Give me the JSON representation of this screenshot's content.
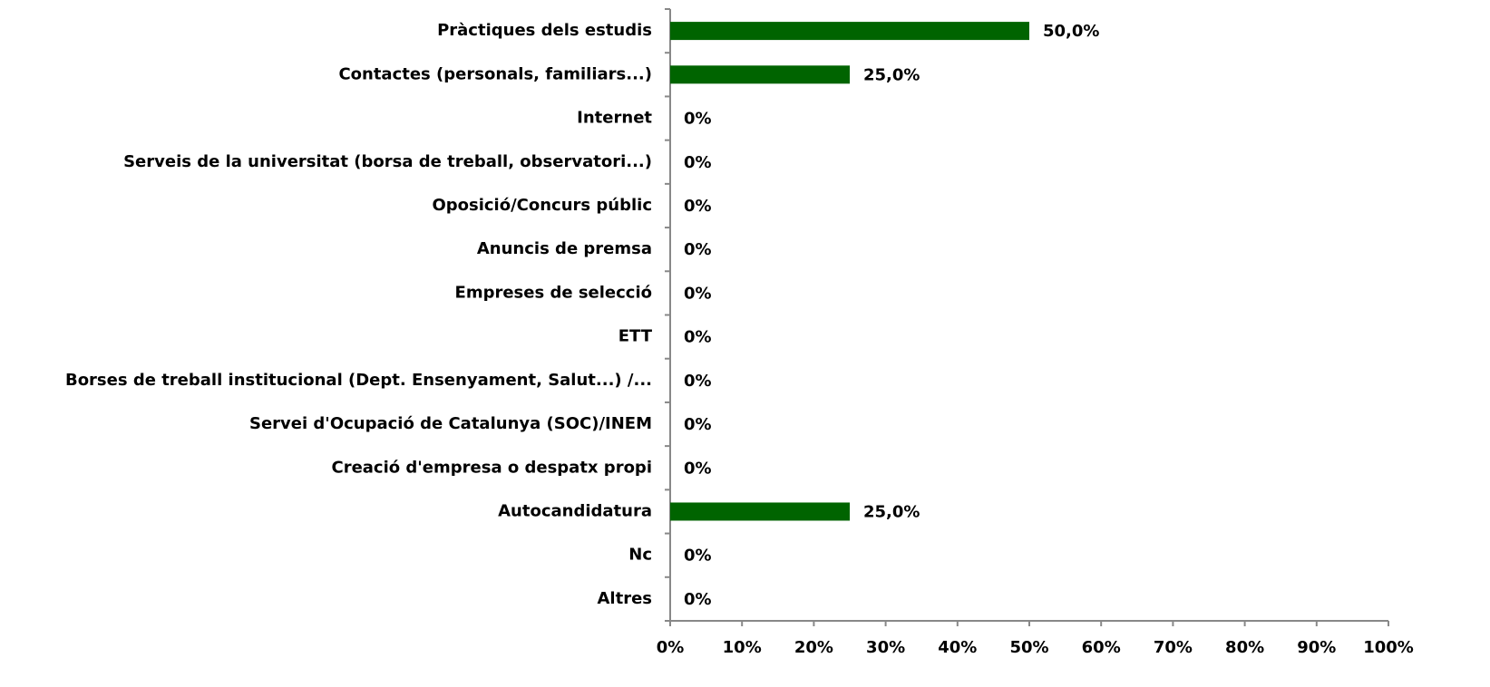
{
  "chart_data": {
    "type": "barh",
    "categories": [
      "Pràctiques dels estudis",
      "Contactes (personals, familiars...)",
      "Internet",
      "Serveis de la universitat (borsa de treball, observatori...)",
      "Oposició/Concurs públic",
      "Anuncis de premsa",
      "Empreses de selecció",
      "ETT",
      "Borses de treball institucional (Dept. Ensenyament, Salut...) /...",
      "Servei d'Ocupació de Catalunya (SOC)/INEM",
      "Creació d'empresa o despatx propi",
      "Autocandidatura",
      "Nc",
      "Altres"
    ],
    "values": [
      50,
      25,
      0,
      0,
      0,
      0,
      0,
      0,
      0,
      0,
      0,
      25,
      0,
      0
    ],
    "value_labels": [
      "50,0%",
      "25,0%",
      "0%",
      "0%",
      "0%",
      "0%",
      "0%",
      "0%",
      "0%",
      "0%",
      "0%",
      "25,0%",
      "0%",
      "0%"
    ],
    "color": "#006400",
    "xlim": [
      0,
      100
    ],
    "xticks": [
      {
        "value": 0,
        "label": "0%"
      },
      {
        "value": 10,
        "label": "10%"
      },
      {
        "value": 20,
        "label": "20%"
      },
      {
        "value": 30,
        "label": "30%"
      },
      {
        "value": 40,
        "label": "40%"
      },
      {
        "value": 50,
        "label": "50%"
      },
      {
        "value": 60,
        "label": "60%"
      },
      {
        "value": 70,
        "label": "70%"
      },
      {
        "value": 80,
        "label": "80%"
      },
      {
        "value": 90,
        "label": "90%"
      },
      {
        "value": 100,
        "label": "100%"
      }
    ]
  }
}
